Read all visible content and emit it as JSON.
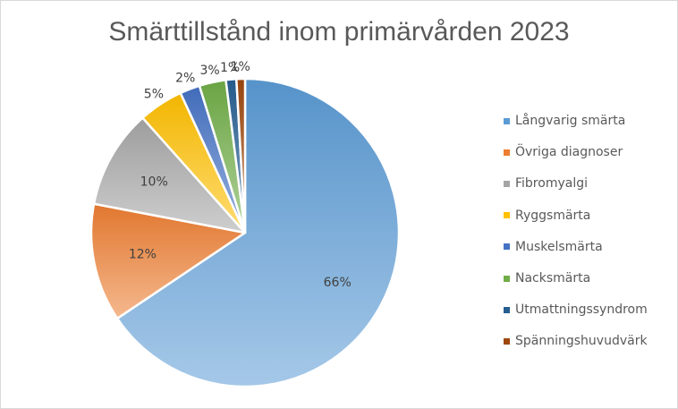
{
  "chart_data": {
    "type": "pie",
    "title": "Smärttillstånd inom primärvården 2023",
    "categories": [
      "Långvarig smärta",
      "Övriga diagnoser",
      "Fibromyalgi",
      "Ryggsmärta",
      "Muskelsmärta",
      "Nacksmärta",
      "Utmattningssyndrom",
      "Spänningshuvudvärk"
    ],
    "values": [
      65.6,
      12.4,
      10.4,
      4.7,
      2.1,
      2.8,
      1.1,
      0.9
    ],
    "labels": [
      "66%",
      "12%",
      "10%",
      "5%",
      "2%",
      "3%",
      "1%",
      "1%"
    ],
    "colors": [
      "#5b9bd5",
      "#ed7d31",
      "#a5a5a5",
      "#ffc000",
      "#4472c4",
      "#70ad47",
      "#255e91",
      "#9e480e"
    ],
    "legend_position": "right"
  }
}
